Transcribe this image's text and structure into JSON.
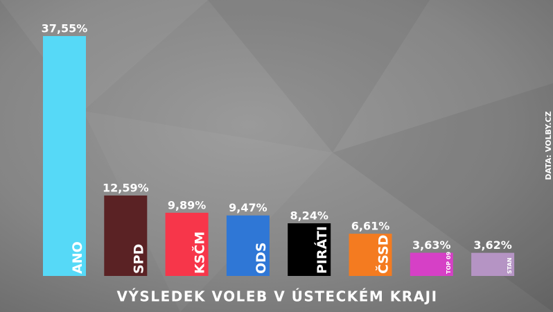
{
  "chart_data": {
    "type": "bar",
    "title": "VÝSLEDEK VOLEB V ÚSTECKÉM KRAJI",
    "source": "DATA: VOLBY.CZ",
    "categories": [
      "ANO",
      "SPD",
      "KSČM",
      "ODS",
      "PIRÁTI",
      "ČSSD",
      "TOP 09",
      "STAN"
    ],
    "values": [
      37.55,
      12.59,
      9.89,
      9.47,
      8.24,
      6.61,
      3.63,
      3.62
    ],
    "value_labels": [
      "37,55%",
      "12,59%",
      "9,89%",
      "9,47%",
      "8,24%",
      "6,61%",
      "3,63%",
      "3,62%"
    ],
    "colors": [
      "#56d9f7",
      "#5a2224",
      "#f7364a",
      "#2f77d6",
      "#000000",
      "#f47b20",
      "#d640c6",
      "#b594c4"
    ]
  }
}
